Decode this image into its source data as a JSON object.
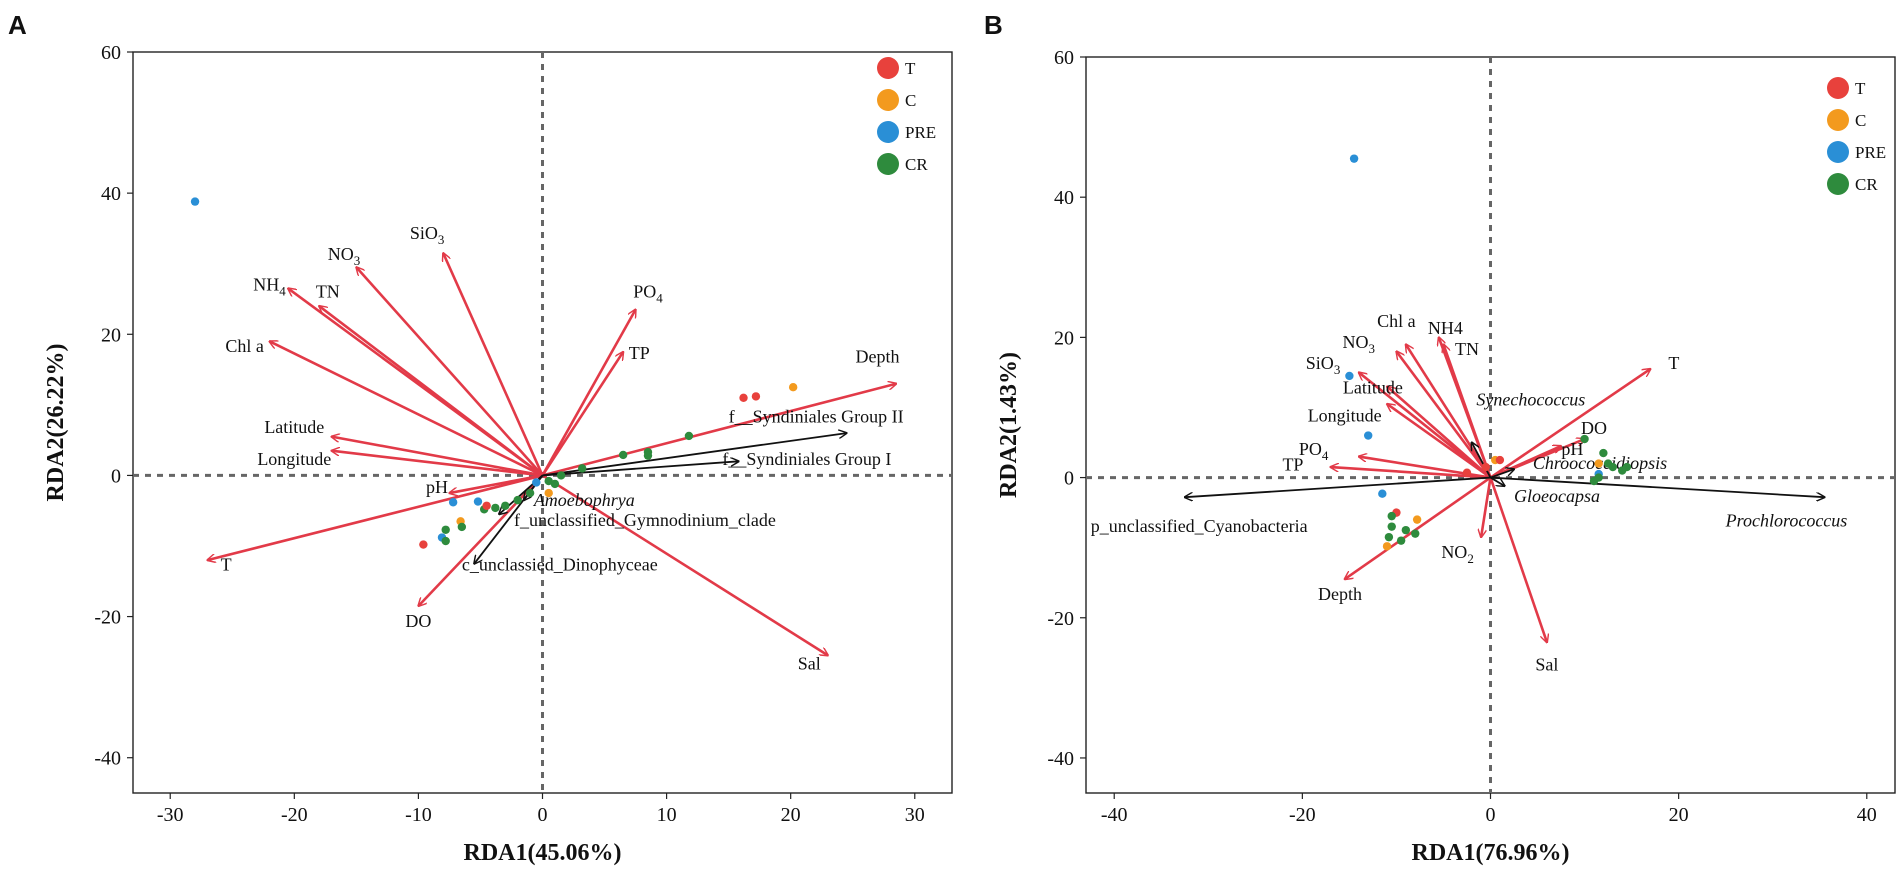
{
  "chart_data": [
    {
      "panel": "A",
      "type": "scatter",
      "xlabel": "RDA1(45.06%)",
      "ylabel": "RDA2(26.22%)",
      "xlim": [
        -33,
        33
      ],
      "ylim": [
        -45,
        60
      ],
      "xticks": [
        -30,
        -20,
        -10,
        0,
        10,
        20,
        30
      ],
      "yticks": [
        -40,
        -20,
        0,
        20,
        40,
        60
      ],
      "legend": [
        {
          "name": "T",
          "color": "#e8413c"
        },
        {
          "name": "C",
          "color": "#f39a1e"
        },
        {
          "name": "PRE",
          "color": "#2a8fd6"
        },
        {
          "name": "CR",
          "color": "#2e8b3d"
        }
      ],
      "env_arrows": [
        {
          "name": "NO₃",
          "x": -15,
          "y": 29.5,
          "lx": -16,
          "ly": 30.5
        },
        {
          "name": "SiO₃",
          "x": -8,
          "y": 31.5,
          "lx": -9.3,
          "ly": 33.5
        },
        {
          "name": "NH₄",
          "x": -20.5,
          "y": 26.5,
          "lx": -22,
          "ly": 26.2
        },
        {
          "name": "TN",
          "x": -18,
          "y": 24,
          "lx": -17.3,
          "ly": 25.2
        },
        {
          "name": "Chl a",
          "x": -22,
          "y": 19,
          "lx": -24,
          "ly": 17.5
        },
        {
          "name": "PO₄",
          "x": 7.5,
          "y": 23.5,
          "lx": 8.5,
          "ly": 25.2
        },
        {
          "name": "TP",
          "x": 6.5,
          "y": 17.5,
          "lx": 7.8,
          "ly": 16.5
        },
        {
          "name": "Depth",
          "x": 28.5,
          "y": 13,
          "lx": 27,
          "ly": 16
        },
        {
          "name": "Latitude",
          "x": -17,
          "y": 5.5,
          "lx": -20,
          "ly": 6
        },
        {
          "name": "Longitude",
          "x": -17,
          "y": 3.5,
          "lx": -20,
          "ly": 1.5
        },
        {
          "name": "pH",
          "x": -7.5,
          "y": -2.5,
          "lx": -8.5,
          "ly": -2.5
        },
        {
          "name": "T",
          "x": -27,
          "y": -12,
          "lx": -25.5,
          "ly": -13.5
        },
        {
          "name": "DO",
          "x": -10,
          "y": -18.5,
          "lx": -10,
          "ly": -21.5
        },
        {
          "name": "Sal",
          "x": 23,
          "y": -25.5,
          "lx": 21.5,
          "ly": -27.5
        }
      ],
      "taxa_arrows": [
        {
          "name": "f__Syndiniales Group II",
          "x": 24.5,
          "y": 6,
          "lx": 15,
          "ly": 7.5,
          "italic": false
        },
        {
          "name": "f__Syndiniales Group I",
          "x": 15.8,
          "y": 2,
          "lx": 14.5,
          "ly": 1.5,
          "italic": false
        },
        {
          "name": "Amoebophrya",
          "x": -1.5,
          "y": -3.5,
          "lx": -0.7,
          "ly": -4.3,
          "italic": true
        },
        {
          "name": "f_unclassified_Gymnodinium_clade",
          "x": -3.5,
          "y": -5.5,
          "lx": -2.3,
          "ly": -7.2,
          "italic": false
        },
        {
          "name": "c_unclassied_Dinophyceae",
          "x": -5.5,
          "y": -12.5,
          "lx": -6.5,
          "ly": -13.5,
          "italic": false
        }
      ],
      "points": [
        {
          "group": "PRE",
          "x": -28,
          "y": 38.8
        },
        {
          "group": "T",
          "x": 16.2,
          "y": 11
        },
        {
          "group": "T",
          "x": 17.2,
          "y": 11.2
        },
        {
          "group": "C",
          "x": 20.2,
          "y": 12.5
        },
        {
          "group": "CR",
          "x": 11.8,
          "y": 5.6
        },
        {
          "group": "CR",
          "x": 8.5,
          "y": 3.3
        },
        {
          "group": "CR",
          "x": 8.5,
          "y": 2.8
        },
        {
          "group": "CR",
          "x": 6.5,
          "y": 2.9
        },
        {
          "group": "CR",
          "x": 3.2,
          "y": 1
        },
        {
          "group": "CR",
          "x": 1.5,
          "y": 0
        },
        {
          "group": "CR",
          "x": 0.5,
          "y": -0.8
        },
        {
          "group": "CR",
          "x": 1,
          "y": -1.2
        },
        {
          "group": "C",
          "x": 0.5,
          "y": -2.5
        },
        {
          "group": "PRE",
          "x": -0.5,
          "y": -1
        },
        {
          "group": "CR",
          "x": -1,
          "y": -2.5
        },
        {
          "group": "CR",
          "x": -2,
          "y": -3.5
        },
        {
          "group": "CR",
          "x": -3,
          "y": -4.3
        },
        {
          "group": "CR",
          "x": -3.8,
          "y": -4.6
        },
        {
          "group": "CR",
          "x": -4.7,
          "y": -4.8
        },
        {
          "group": "PRE",
          "x": -5.2,
          "y": -3.7
        },
        {
          "group": "PRE",
          "x": -7.2,
          "y": -3.8
        },
        {
          "group": "T",
          "x": -4.5,
          "y": -4.3
        },
        {
          "group": "C",
          "x": -6.6,
          "y": -6.5
        },
        {
          "group": "CR",
          "x": -6.5,
          "y": -7.3
        },
        {
          "group": "CR",
          "x": -7.8,
          "y": -7.7
        },
        {
          "group": "PRE",
          "x": -8.1,
          "y": -8.8
        },
        {
          "group": "CR",
          "x": -7.8,
          "y": -9.3
        },
        {
          "group": "T",
          "x": -9.6,
          "y": -9.8
        }
      ]
    },
    {
      "panel": "B",
      "type": "scatter",
      "xlabel": "RDA1(76.96%)",
      "ylabel": "RDA2(1.43%)",
      "xlim": [
        -43,
        43
      ],
      "ylim": [
        -45,
        60
      ],
      "xticks": [
        -40,
        -20,
        0,
        20,
        40
      ],
      "yticks": [
        -40,
        -20,
        0,
        20,
        40,
        60
      ],
      "legend": [
        {
          "name": "T",
          "color": "#e8413c"
        },
        {
          "name": "C",
          "color": "#f39a1e"
        },
        {
          "name": "PRE",
          "color": "#2a8fd6"
        },
        {
          "name": "CR",
          "color": "#2e8b3d"
        }
      ],
      "env_arrows": [
        {
          "name": "Chl a",
          "x": -9,
          "y": 19,
          "lx": -10,
          "ly": 21.5
        },
        {
          "name": "NO₃",
          "x": -10,
          "y": 18,
          "lx": -14,
          "ly": 18.5
        },
        {
          "name": "NH4",
          "x": -5.5,
          "y": 20,
          "lx": -4.8,
          "ly": 20.5
        },
        {
          "name": "TN",
          "x": -5,
          "y": 19,
          "lx": -2.5,
          "ly": 17.5
        },
        {
          "name": "SiO₃",
          "x": -14,
          "y": 15,
          "lx": -17.8,
          "ly": 15.5
        },
        {
          "name": "Latitude",
          "x": -11,
          "y": 13,
          "lx": -12.5,
          "ly": 12
        },
        {
          "name": "Longitude",
          "x": -11,
          "y": 10.5,
          "lx": -15.5,
          "ly": 8
        },
        {
          "name": "T",
          "x": 17,
          "y": 15.5,
          "lx": 19.5,
          "ly": 15.5
        },
        {
          "name": "DO",
          "x": 10,
          "y": 5.5,
          "lx": 11,
          "ly": 6.2
        },
        {
          "name": "pH",
          "x": 7.5,
          "y": 4.5,
          "lx": 8.7,
          "ly": 3.2
        },
        {
          "name": "PO₄",
          "x": -14,
          "y": 3,
          "lx": -18.8,
          "ly": 3.2
        },
        {
          "name": "TP",
          "x": -17,
          "y": 1.5,
          "lx": -21,
          "ly": 1
        },
        {
          "name": "NO₂",
          "x": -1,
          "y": -8.5,
          "lx": -3.5,
          "ly": -11.5
        },
        {
          "name": "Depth",
          "x": -15.5,
          "y": -14.5,
          "lx": -16,
          "ly": -17.5
        },
        {
          "name": "Sal",
          "x": 6,
          "y": -23.5,
          "lx": 6,
          "ly": -27.5
        }
      ],
      "taxa_arrows": [
        {
          "name": "Synechococcus",
          "x": -2,
          "y": 5,
          "lx": -1.5,
          "ly": 10.3,
          "italic": true
        },
        {
          "name": "Chroococcidiopsis",
          "x": 2.5,
          "y": 1.2,
          "lx": 4.5,
          "ly": 1.2,
          "italic": true
        },
        {
          "name": "Gloeocapsa",
          "x": 1.5,
          "y": -1.2,
          "lx": 2.5,
          "ly": -3.5,
          "italic": true
        },
        {
          "name": "p_unclassified_Cyanobacteria",
          "x": -32.5,
          "y": -2.8,
          "lx": -42.5,
          "ly": -7.8,
          "italic": false
        },
        {
          "name": "Prochlorococcus",
          "x": 35.5,
          "y": -2.8,
          "lx": 25,
          "ly": -7,
          "italic": true
        }
      ],
      "points": [
        {
          "group": "PRE",
          "x": -14.5,
          "y": 45.5
        },
        {
          "group": "PRE",
          "x": -15,
          "y": 14.5
        },
        {
          "group": "PRE",
          "x": -13,
          "y": 6
        },
        {
          "group": "PRE",
          "x": -11.5,
          "y": -2.3
        },
        {
          "group": "T",
          "x": -10,
          "y": -5
        },
        {
          "group": "C",
          "x": -7.8,
          "y": -6
        },
        {
          "group": "CR",
          "x": -10.5,
          "y": -5.5
        },
        {
          "group": "CR",
          "x": -10.5,
          "y": -7
        },
        {
          "group": "CR",
          "x": -9,
          "y": -7.5
        },
        {
          "group": "CR",
          "x": -8,
          "y": -8
        },
        {
          "group": "CR",
          "x": -10.8,
          "y": -8.5
        },
        {
          "group": "CR",
          "x": -9.5,
          "y": -9
        },
        {
          "group": "C",
          "x": -11,
          "y": -9.8
        },
        {
          "group": "T",
          "x": -2.5,
          "y": 0.7
        },
        {
          "group": "T",
          "x": -0.5,
          "y": 1.5
        },
        {
          "group": "C",
          "x": 0.5,
          "y": 2.5
        },
        {
          "group": "T",
          "x": 1,
          "y": 2.5
        },
        {
          "group": "CR",
          "x": 10,
          "y": 5.5
        },
        {
          "group": "CR",
          "x": 12,
          "y": 3.5
        },
        {
          "group": "C",
          "x": 11.5,
          "y": 2
        },
        {
          "group": "CR",
          "x": 12.5,
          "y": 2
        },
        {
          "group": "CR",
          "x": 13,
          "y": 1.5
        },
        {
          "group": "CR",
          "x": 14,
          "y": 1
        },
        {
          "group": "PRE",
          "x": 11.5,
          "y": 0.5
        },
        {
          "group": "CR",
          "x": 11,
          "y": -0.5
        },
        {
          "group": "CR",
          "x": 11.5,
          "y": 0
        },
        {
          "group": "CR",
          "x": 14.5,
          "y": 1.5
        }
      ]
    }
  ]
}
